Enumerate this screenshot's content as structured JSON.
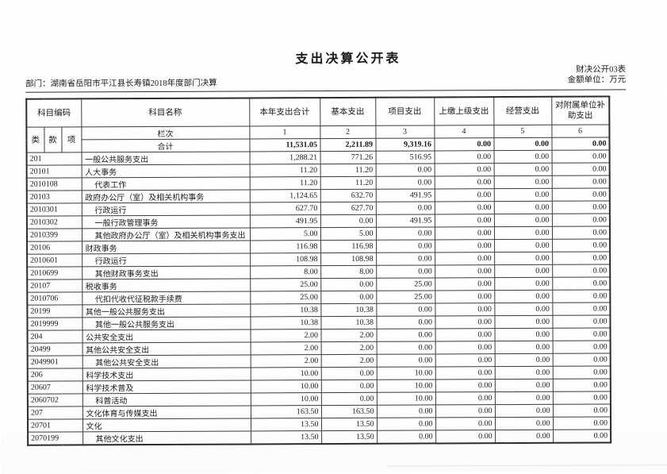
{
  "page": {
    "title": "支出决算公开表",
    "form_code": "财决公开03表",
    "unit_label": "金额单位：万元",
    "department_label": "部门：湖南省岳阳市平江县长寿镇2018年度部门决算"
  },
  "table": {
    "header": {
      "code": "科目编码",
      "code_sub": [
        "类",
        "款",
        "项"
      ],
      "name": "科目名称",
      "cols": [
        "本年支出合计",
        "基本支出",
        "项目支出",
        "上缴上级支出",
        "经营支出",
        "对附属单位补助支出"
      ]
    },
    "lanci": {
      "label": "栏次",
      "cols": [
        "1",
        "2",
        "3",
        "4",
        "5",
        "6"
      ]
    },
    "total": {
      "label": "合计",
      "values": [
        "11,531.05",
        "2,211.89",
        "9,319.16",
        "0.00",
        "0.00",
        "0.00"
      ]
    },
    "rows": [
      {
        "code": "201",
        "name": "一般公共服务支出",
        "indent": 0,
        "values": [
          "1,288.21",
          "771.26",
          "516.95",
          "0.00",
          "0.00",
          "0.00"
        ]
      },
      {
        "code": "20101",
        "name": "人大事务",
        "indent": 0,
        "values": [
          "11.20",
          "11.20",
          "0.00",
          "0.00",
          "0.00",
          "0.00"
        ]
      },
      {
        "code": "2010108",
        "name": "代表工作",
        "indent": 1,
        "values": [
          "11.20",
          "11.20",
          "0.00",
          "0.00",
          "0.00",
          "0.00"
        ]
      },
      {
        "code": "20103",
        "name": "政府办公厅（室）及相关机构事务",
        "indent": 0,
        "values": [
          "1,124.65",
          "632.70",
          "491.95",
          "0.00",
          "0.00",
          "0.00"
        ]
      },
      {
        "code": "2010301",
        "name": "行政运行",
        "indent": 1,
        "values": [
          "627.70",
          "627.70",
          "0.00",
          "0.00",
          "0.00",
          "0.00"
        ]
      },
      {
        "code": "2010302",
        "name": "一般行政管理事务",
        "indent": 1,
        "values": [
          "491.95",
          "0.00",
          "491.95",
          "0.00",
          "0.00",
          "0.00"
        ]
      },
      {
        "code": "2010399",
        "name": "其他政府办公厅（室）及相关机构事务支出",
        "indent": 1,
        "values": [
          "5.00",
          "5.00",
          "0.00",
          "0.00",
          "0.00",
          "0.00"
        ]
      },
      {
        "code": "20106",
        "name": "财政事务",
        "indent": 0,
        "values": [
          "116.98",
          "116.98",
          "0.00",
          "0.00",
          "0.00",
          "0.00"
        ]
      },
      {
        "code": "2010601",
        "name": "行政运行",
        "indent": 1,
        "values": [
          "108.98",
          "108.98",
          "0.00",
          "0.00",
          "0.00",
          "0.00"
        ]
      },
      {
        "code": "2010699",
        "name": "其他财政事务支出",
        "indent": 1,
        "values": [
          "8.00",
          "8.00",
          "0.00",
          "0.00",
          "0.00",
          "0.00"
        ]
      },
      {
        "code": "20107",
        "name": "税收事务",
        "indent": 0,
        "values": [
          "25.00",
          "0.00",
          "25.00",
          "0.00",
          "0.00",
          "0.00"
        ]
      },
      {
        "code": "2010706",
        "name": "代扣代收代征税款手续费",
        "indent": 1,
        "values": [
          "25.00",
          "0.00",
          "25.00",
          "0.00",
          "0.00",
          "0.00"
        ]
      },
      {
        "code": "20199",
        "name": "其他一般公共服务支出",
        "indent": 0,
        "values": [
          "10.38",
          "10.38",
          "0.00",
          "0.00",
          "0.00",
          "0.00"
        ]
      },
      {
        "code": "2019999",
        "name": "其他一般公共服务支出",
        "indent": 1,
        "values": [
          "10.38",
          "10.38",
          "0.00",
          "0.00",
          "0.00",
          "0.00"
        ]
      },
      {
        "code": "204",
        "name": "公共安全支出",
        "indent": 0,
        "values": [
          "2.00",
          "2.00",
          "0.00",
          "0.00",
          "0.00",
          "0.00"
        ]
      },
      {
        "code": "20499",
        "name": "其他公共安全支出",
        "indent": 0,
        "values": [
          "2.00",
          "2.00",
          "0.00",
          "0.00",
          "0.00",
          "0.00"
        ]
      },
      {
        "code": "2049901",
        "name": "其他公共安全支出",
        "indent": 1,
        "values": [
          "2.00",
          "2.00",
          "0.00",
          "0.00",
          "0.00",
          "0.00"
        ]
      },
      {
        "code": "206",
        "name": "科学技术支出",
        "indent": 0,
        "values": [
          "10.00",
          "0.00",
          "10.00",
          "0.00",
          "0.00",
          "0.00"
        ]
      },
      {
        "code": "20607",
        "name": "科学技术普及",
        "indent": 0,
        "values": [
          "10.00",
          "0.00",
          "10.00",
          "0.00",
          "0.00",
          "0.00"
        ]
      },
      {
        "code": "2060702",
        "name": "科普活动",
        "indent": 1,
        "values": [
          "10.00",
          "0.00",
          "10.00",
          "0.00",
          "0.00",
          "0.00"
        ]
      },
      {
        "code": "207",
        "name": "文化体育与传媒支出",
        "indent": 0,
        "values": [
          "163.50",
          "163.50",
          "0.00",
          "0.00",
          "0.00",
          "0.00"
        ]
      },
      {
        "code": "20701",
        "name": "文化",
        "indent": 0,
        "values": [
          "13.50",
          "13.50",
          "0.00",
          "0.00",
          "0.00",
          "0.00"
        ]
      },
      {
        "code": "2070199",
        "name": "其他文化支出",
        "indent": 1,
        "values": [
          "13.50",
          "13.50",
          "0.00",
          "0.00",
          "0.00",
          "0.00"
        ]
      }
    ]
  }
}
